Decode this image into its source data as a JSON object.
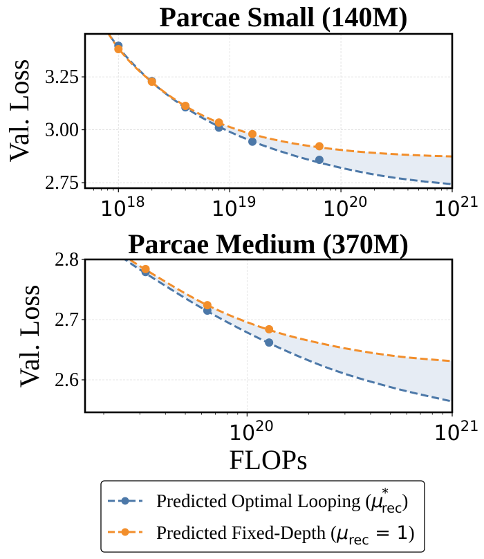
{
  "chart_data": [
    {
      "type": "line",
      "title": "Parcae Small (140M)",
      "xlabel": "",
      "ylabel": "Val. Loss",
      "xscale": "log",
      "xlim_log10": [
        17.7,
        21
      ],
      "ylim": [
        2.724,
        3.453
      ],
      "x_ticks": [
        {
          "exp": "18",
          "value": 1e+18
        },
        {
          "exp": "19",
          "value": 1e+19
        },
        {
          "exp": "20",
          "value": 1e+20
        },
        {
          "exp": "21",
          "value": 1e+21
        }
      ],
      "y_ticks": [
        {
          "label": "3.25",
          "value": 3.25
        },
        {
          "label": "3.00",
          "value": 3.0
        },
        {
          "label": "2.75",
          "value": 2.75
        }
      ],
      "grid": true,
      "series": [
        {
          "name": "Predicted Optimal Looping (μ*rec)",
          "color": "#4C78A8",
          "points": [
            {
              "x": 1e+18,
              "y": 3.397
            },
            {
              "x": 2e+18,
              "y": 3.23
            },
            {
              "x": 4e+18,
              "y": 3.106
            },
            {
              "x": 8e+18,
              "y": 3.01
            },
            {
              "x": 1.6e+19,
              "y": 2.944
            },
            {
              "x": 6.4e+19,
              "y": 2.858
            }
          ],
          "curve": [
            {
              "x": 5e+17,
              "y": 3.62
            },
            {
              "x": 1e+18,
              "y": 3.39
            },
            {
              "x": 2e+18,
              "y": 3.225
            },
            {
              "x": 4e+18,
              "y": 3.105
            },
            {
              "x": 8e+18,
              "y": 3.015
            },
            {
              "x": 1.6e+19,
              "y": 2.945
            },
            {
              "x": 3.2e+19,
              "y": 2.89
            },
            {
              "x": 6.4e+19,
              "y": 2.845
            },
            {
              "x": 1.28e+20,
              "y": 2.808
            },
            {
              "x": 2.56e+20,
              "y": 2.779
            },
            {
              "x": 5.12e+20,
              "y": 2.758
            },
            {
              "x": 1e+21,
              "y": 2.743
            }
          ]
        },
        {
          "name": "Predicted Fixed-Depth (μrec = 1)",
          "color": "#F28E2B",
          "points": [
            {
              "x": 1e+18,
              "y": 3.381
            },
            {
              "x": 2e+18,
              "y": 3.227
            },
            {
              "x": 4e+18,
              "y": 3.113
            },
            {
              "x": 8e+18,
              "y": 3.034
            },
            {
              "x": 1.6e+19,
              "y": 2.98
            },
            {
              "x": 6.4e+19,
              "y": 2.922
            }
          ],
          "curve": [
            {
              "x": 5e+17,
              "y": 3.64
            },
            {
              "x": 1e+18,
              "y": 3.385
            },
            {
              "x": 2e+18,
              "y": 3.225
            },
            {
              "x": 4e+18,
              "y": 3.112
            },
            {
              "x": 8e+18,
              "y": 3.033
            },
            {
              "x": 1.6e+19,
              "y": 2.979
            },
            {
              "x": 3.2e+19,
              "y": 2.942
            },
            {
              "x": 6.4e+19,
              "y": 2.917
            },
            {
              "x": 1.28e+20,
              "y": 2.899
            },
            {
              "x": 2.56e+20,
              "y": 2.887
            },
            {
              "x": 5.12e+20,
              "y": 2.879
            },
            {
              "x": 1e+21,
              "y": 2.874
            }
          ]
        }
      ]
    },
    {
      "type": "line",
      "title": "Parcae Medium (370M)",
      "xlabel": "FLOPs",
      "ylabel": "Val. Loss",
      "xscale": "log",
      "xlim_log10": [
        19.21,
        21
      ],
      "ylim": [
        2.546,
        2.8
      ],
      "x_ticks": [
        {
          "exp": "20",
          "value": 1e+20
        },
        {
          "exp": "21",
          "value": 1e+21
        }
      ],
      "y_ticks": [
        {
          "label": "2.8",
          "value": 2.8
        },
        {
          "label": "2.7",
          "value": 2.7
        },
        {
          "label": "2.6",
          "value": 2.6
        }
      ],
      "grid": true,
      "series": [
        {
          "name": "Predicted Optimal Looping (μ*rec)",
          "color": "#4C78A8",
          "points": [
            {
              "x": 3.2e+19,
              "y": 2.779
            },
            {
              "x": 6.4e+19,
              "y": 2.715
            },
            {
              "x": 1.28e+20,
              "y": 2.662
            }
          ],
          "curve": [
            {
              "x": 2.2e+19,
              "y": 2.815
            },
            {
              "x": 3.2e+19,
              "y": 2.777
            },
            {
              "x": 6.4e+19,
              "y": 2.714
            },
            {
              "x": 1.28e+20,
              "y": 2.661
            },
            {
              "x": 2.56e+20,
              "y": 2.618
            },
            {
              "x": 5.12e+20,
              "y": 2.587
            },
            {
              "x": 1e+21,
              "y": 2.564
            }
          ]
        },
        {
          "name": "Predicted Fixed-Depth (μrec = 1)",
          "color": "#F28E2B",
          "points": [
            {
              "x": 3.2e+19,
              "y": 2.784
            },
            {
              "x": 6.4e+19,
              "y": 2.724
            },
            {
              "x": 1.28e+20,
              "y": 2.684
            }
          ],
          "curve": [
            {
              "x": 2.2e+19,
              "y": 2.82
            },
            {
              "x": 3.2e+19,
              "y": 2.783
            },
            {
              "x": 6.4e+19,
              "y": 2.724
            },
            {
              "x": 1.28e+20,
              "y": 2.683
            },
            {
              "x": 2.56e+20,
              "y": 2.657
            },
            {
              "x": 5.12e+20,
              "y": 2.64
            },
            {
              "x": 1e+21,
              "y": 2.631
            }
          ]
        }
      ]
    }
  ],
  "legend": {
    "placement": "bottom-center",
    "items": [
      {
        "label": "Predicted Optimal Looping (",
        "math": "μ",
        "sup": "*",
        "sub": "rec",
        "suffix": ")",
        "color": "#4C78A8"
      },
      {
        "label": "Predicted Fixed-Depth (",
        "math": "μ",
        "sub": "rec",
        "eq": " = 1",
        "suffix": ")",
        "color": "#F28E2B"
      }
    ]
  },
  "fill_color": "#E6ECF4"
}
